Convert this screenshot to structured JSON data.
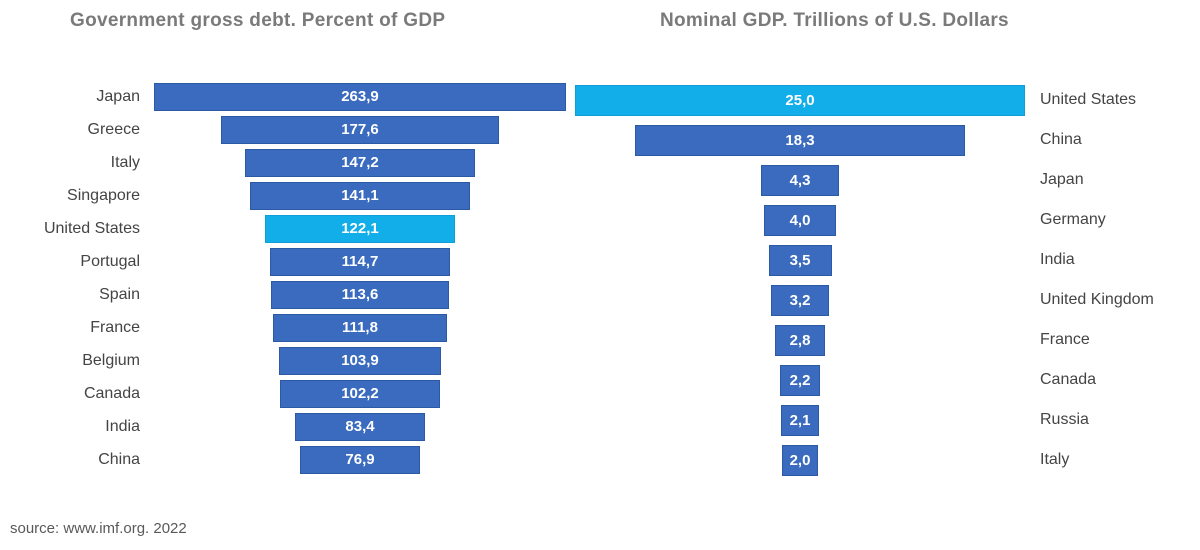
{
  "source_note": "source: www.imf.org. 2022",
  "colors": {
    "bar": "#3a6bbe",
    "bar_border": "#2c59a4",
    "highlight": "#12aee9",
    "highlight_border": "#0f9ed6",
    "title": "#7a7a7a",
    "label": "#444444",
    "value_text": "#ffffff"
  },
  "chart_data": [
    {
      "type": "bar",
      "title": "Government gross debt. Percent of GDP",
      "orientation": "horizontal-centered-funnel",
      "labels_side": "left",
      "categories": [
        "Japan",
        "Greece",
        "Italy",
        "Singapore",
        "United States",
        "Portugal",
        "Spain",
        "France",
        "Belgium",
        "Canada",
        "India",
        "China"
      ],
      "values": [
        263.9,
        177.6,
        147.2,
        141.1,
        122.1,
        114.7,
        113.6,
        111.8,
        103.9,
        102.2,
        83.4,
        76.9
      ],
      "value_labels": [
        "263,9",
        "177,6",
        "147,2",
        "141,1",
        "122,1",
        "114,7",
        "113,6",
        "111,8",
        "103,9",
        "102,2",
        "83,4",
        "76,9"
      ],
      "highlight_index": 4,
      "xlabel": "",
      "ylabel": "",
      "grid": false,
      "legend": false
    },
    {
      "type": "bar",
      "title": "Nominal GDP. Trillions of U.S. Dollars",
      "orientation": "horizontal-centered-funnel",
      "labels_side": "right",
      "categories": [
        "United States",
        "China",
        "Japan",
        "Germany",
        "India",
        "United Kingdom",
        "France",
        "Canada",
        "Russia",
        "Italy"
      ],
      "values": [
        25.0,
        18.3,
        4.3,
        4.0,
        3.5,
        3.2,
        2.8,
        2.2,
        2.1,
        2.0
      ],
      "value_labels": [
        "25,0",
        "18,3",
        "4,3",
        "4,0",
        "3,5",
        "3,2",
        "2,8",
        "2,2",
        "2,1",
        "2,0"
      ],
      "highlight_index": 0,
      "xlabel": "",
      "ylabel": "",
      "grid": false,
      "legend": false
    }
  ]
}
